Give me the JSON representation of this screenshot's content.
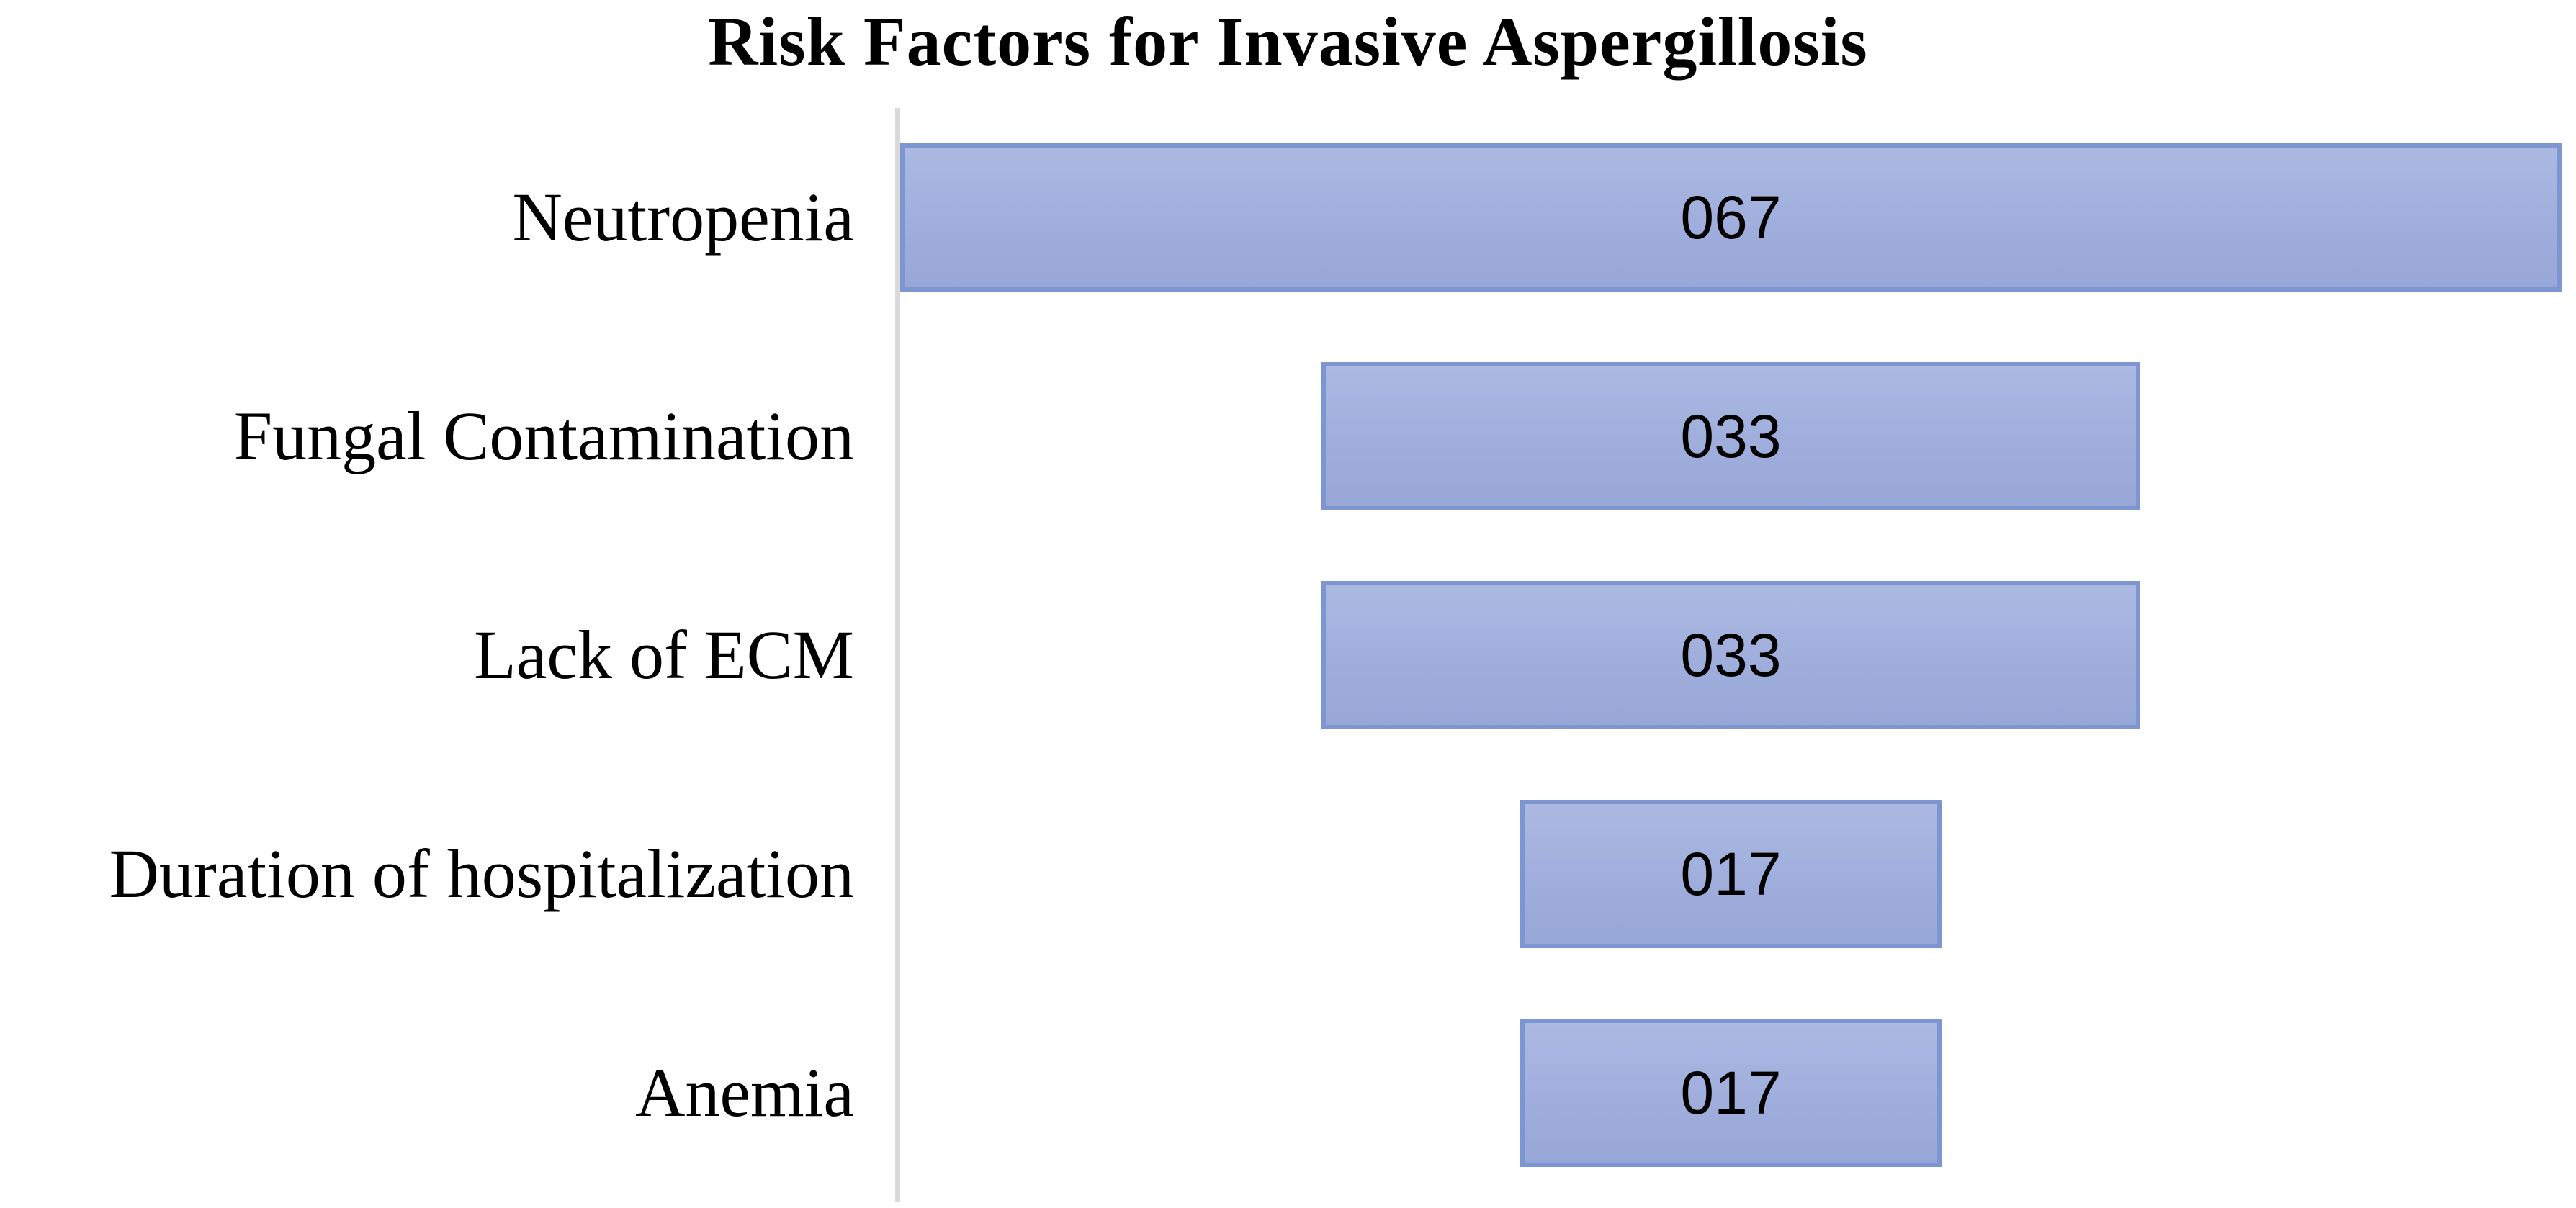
{
  "chart_data": {
    "type": "bar",
    "subtype": "funnel-centered",
    "title": "Risk Factors for Invasive Aspergillosis",
    "categories": [
      "Neutropenia",
      "Fungal Contamination",
      "Lack of ECM",
      "Duration of hospitalization",
      "Anemia"
    ],
    "values": [
      67,
      33,
      33,
      17,
      17
    ],
    "value_labels": [
      "067",
      "033",
      "033",
      "017",
      "017"
    ],
    "xlabel": "",
    "ylabel": "",
    "value_axis_max": 67,
    "grid": false,
    "legend": false,
    "layout": {
      "orientation": "horizontal",
      "bar_alignment": "centered-funnel",
      "value_label_position": "inside-center",
      "category_label_position": "left-of-axis",
      "axis_line": "vertical-left"
    }
  },
  "colors": {
    "bar_fill_top": "#ACB9E2",
    "bar_fill": "#9FAEDC",
    "bar_fill_bottom": "#97A7D7",
    "bar_border": "#7D96D1",
    "axis_line": "#D9D9D9",
    "text": "#000000",
    "background": "#FFFFFF"
  }
}
